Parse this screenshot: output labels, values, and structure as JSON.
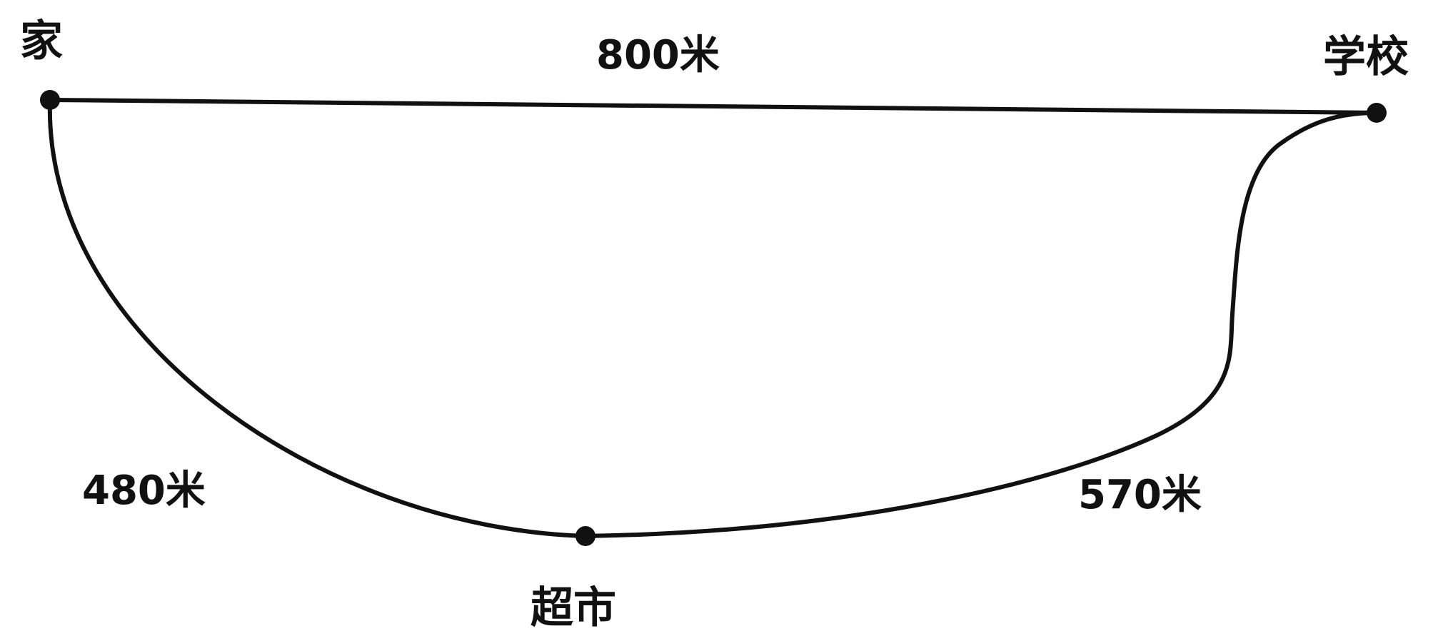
{
  "places": {
    "home": "家",
    "school": "学校",
    "supermarket": "超市"
  },
  "distances": {
    "home_school": "800米",
    "home_supermarket": "480米",
    "supermarket_school": "570米"
  },
  "colors": {
    "ink": "#111111",
    "background": "#ffffff"
  }
}
